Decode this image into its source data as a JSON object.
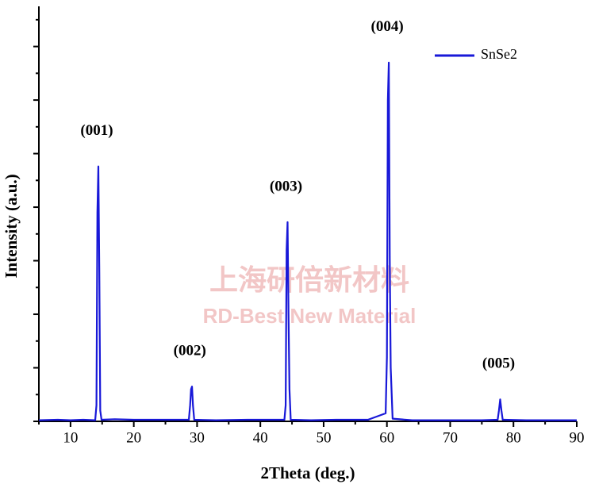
{
  "chart_data": {
    "type": "line",
    "xlabel": "2Theta (deg.)",
    "ylabel": "Intensity (a.u.)",
    "watermark": [
      "上海研倍新材料",
      "RD-Best New Material"
    ],
    "xlim": [
      5,
      90
    ],
    "xticks": [
      10,
      20,
      30,
      40,
      50,
      60,
      70,
      80,
      90
    ],
    "x_minor_ticks": [
      5,
      15,
      25,
      35,
      45,
      55,
      65,
      75,
      85
    ],
    "ylim": [
      0,
      7.75
    ],
    "yticks": [
      0,
      1,
      2,
      3,
      4,
      5,
      6,
      7
    ],
    "y_minor_ticks": [
      0.5,
      1.5,
      2.5,
      3.5,
      4.5,
      5.5,
      6.5,
      7.5
    ],
    "legend": "upper right",
    "annotations": [
      {
        "text": "(001)",
        "x": 14.4
      },
      {
        "text": "(002)",
        "x": 29.1
      },
      {
        "text": "(003)",
        "x": 44.3
      },
      {
        "text": "(004)",
        "x": 60.3
      },
      {
        "text": "(005)",
        "x": 77.9
      }
    ],
    "series": [
      {
        "name": "SnSe2",
        "color": "#1818d8",
        "x": [
          5,
          8,
          10,
          12,
          13.9,
          14.1,
          14.25,
          14.4,
          14.55,
          14.7,
          14.9,
          17,
          20,
          24,
          28.7,
          28.9,
          29.05,
          29.2,
          29.35,
          29.55,
          33,
          38,
          43.8,
          44.0,
          44.15,
          44.3,
          44.45,
          44.6,
          44.8,
          48,
          52,
          57,
          59.8,
          60.0,
          60.15,
          60.3,
          60.45,
          60.6,
          60.9,
          64,
          70,
          75,
          77.5,
          77.7,
          77.9,
          78.1,
          78.3,
          82,
          86,
          90
        ],
        "values": [
          0.02,
          0.03,
          0.02,
          0.03,
          0.02,
          0.3,
          3.9,
          4.76,
          2.8,
          0.2,
          0.03,
          0.04,
          0.03,
          0.03,
          0.03,
          0.3,
          0.6,
          0.65,
          0.3,
          0.03,
          0.02,
          0.03,
          0.03,
          0.3,
          3.2,
          3.72,
          2.0,
          0.6,
          0.03,
          0.02,
          0.03,
          0.03,
          0.15,
          1.2,
          6.0,
          6.7,
          3.0,
          1.0,
          0.05,
          0.02,
          0.02,
          0.02,
          0.03,
          0.2,
          0.41,
          0.2,
          0.03,
          0.02,
          0.02,
          0.02
        ]
      }
    ]
  }
}
